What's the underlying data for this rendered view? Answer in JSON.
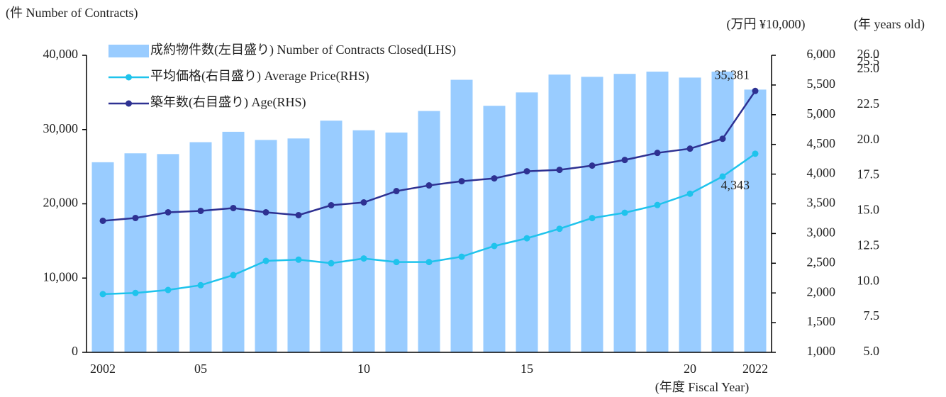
{
  "chart_data": {
    "type": "bar",
    "y_label": "(件 Number of Contracts)",
    "y2_label": "(万円 ¥10,000)",
    "y3_label": "(年 years old)",
    "x_label": "(年度 Fiscal Year)",
    "categories": [
      "2002",
      null,
      null,
      "05",
      null,
      null,
      null,
      null,
      "10",
      null,
      null,
      null,
      null,
      "15",
      null,
      null,
      null,
      null,
      "20",
      null,
      "2022"
    ],
    "series": [
      {
        "name": "成約物件数(左目盛り) Number of Contracts Closed(LHS)",
        "type": "bar",
        "axis": "y",
        "color": "#99ccff",
        "values": [
          25600,
          26800,
          26700,
          28300,
          29700,
          28600,
          28800,
          31200,
          29900,
          29600,
          32500,
          36700,
          33200,
          35000,
          37400,
          37100,
          37500,
          37800,
          37000,
          37800,
          35381
        ],
        "value_labels": [
          null,
          null,
          null,
          null,
          null,
          null,
          null,
          null,
          null,
          null,
          null,
          null,
          null,
          null,
          null,
          null,
          null,
          null,
          null,
          null,
          "35,381"
        ]
      },
      {
        "name": "平均価格(右目盛り) Average Price(RHS)",
        "type": "line",
        "axis": "y2",
        "color": "#1fc3ec",
        "values": [
          1980,
          2000,
          2050,
          2130,
          2300,
          2540,
          2560,
          2500,
          2580,
          2520,
          2520,
          2610,
          2790,
          2920,
          3080,
          3260,
          3350,
          3480,
          3670,
          3960,
          4343
        ],
        "value_labels": [
          null,
          null,
          null,
          null,
          null,
          null,
          null,
          null,
          null,
          null,
          null,
          null,
          null,
          null,
          null,
          null,
          null,
          null,
          null,
          null,
          "4,343"
        ]
      },
      {
        "name": "築年数(右目盛り) Age(RHS)",
        "type": "line",
        "axis": "y3",
        "color": "#2e3192",
        "values": [
          14.3,
          14.5,
          14.9,
          15.0,
          15.2,
          14.9,
          14.7,
          15.4,
          15.6,
          16.4,
          16.8,
          17.1,
          17.3,
          17.8,
          17.9,
          18.2,
          18.6,
          19.1,
          19.4,
          20.1,
          23.48
        ]
      }
    ],
    "ylim": [
      0,
      40000
    ],
    "yticks": [
      0,
      {
        "value": 10000,
        "label": "10,000"
      },
      {
        "value": 20000,
        "label": "20,000"
      },
      {
        "value": 30000,
        "label": "30,000"
      },
      {
        "value": 40000,
        "label": "40,000"
      }
    ],
    "y2lim": [
      1000,
      6000
    ],
    "y2ticks": [
      {
        "value": 1000,
        "label": "1,000"
      },
      {
        "value": 1500,
        "label": "1,500"
      },
      {
        "value": 2000,
        "label": "2,000"
      },
      {
        "value": 2500,
        "label": "2,500"
      },
      {
        "value": 3000,
        "label": "3,000"
      },
      {
        "value": 3500,
        "label": "3,500"
      },
      {
        "value": 4000,
        "label": "4,000"
      },
      {
        "value": 4500,
        "label": "4,500"
      },
      {
        "value": 5000,
        "label": "5,000"
      },
      {
        "value": 5500,
        "label": "5,500"
      },
      {
        "value": 6000,
        "label": "6,000"
      }
    ],
    "y3lim": [
      5,
      26
    ],
    "y3ticks": [
      {
        "value": 5,
        "label": "5.0"
      },
      7.5,
      {
        "value": 10,
        "label": "10.0"
      },
      12.5,
      {
        "value": 15,
        "label": "15.0"
      },
      17.5,
      {
        "value": 20,
        "label": "20.0"
      },
      22.5,
      {
        "value": 25,
        "label": "25.0"
      },
      25.5,
      {
        "value": 26,
        "label": "26.0"
      }
    ],
    "grid": false,
    "legend": "upper left"
  }
}
